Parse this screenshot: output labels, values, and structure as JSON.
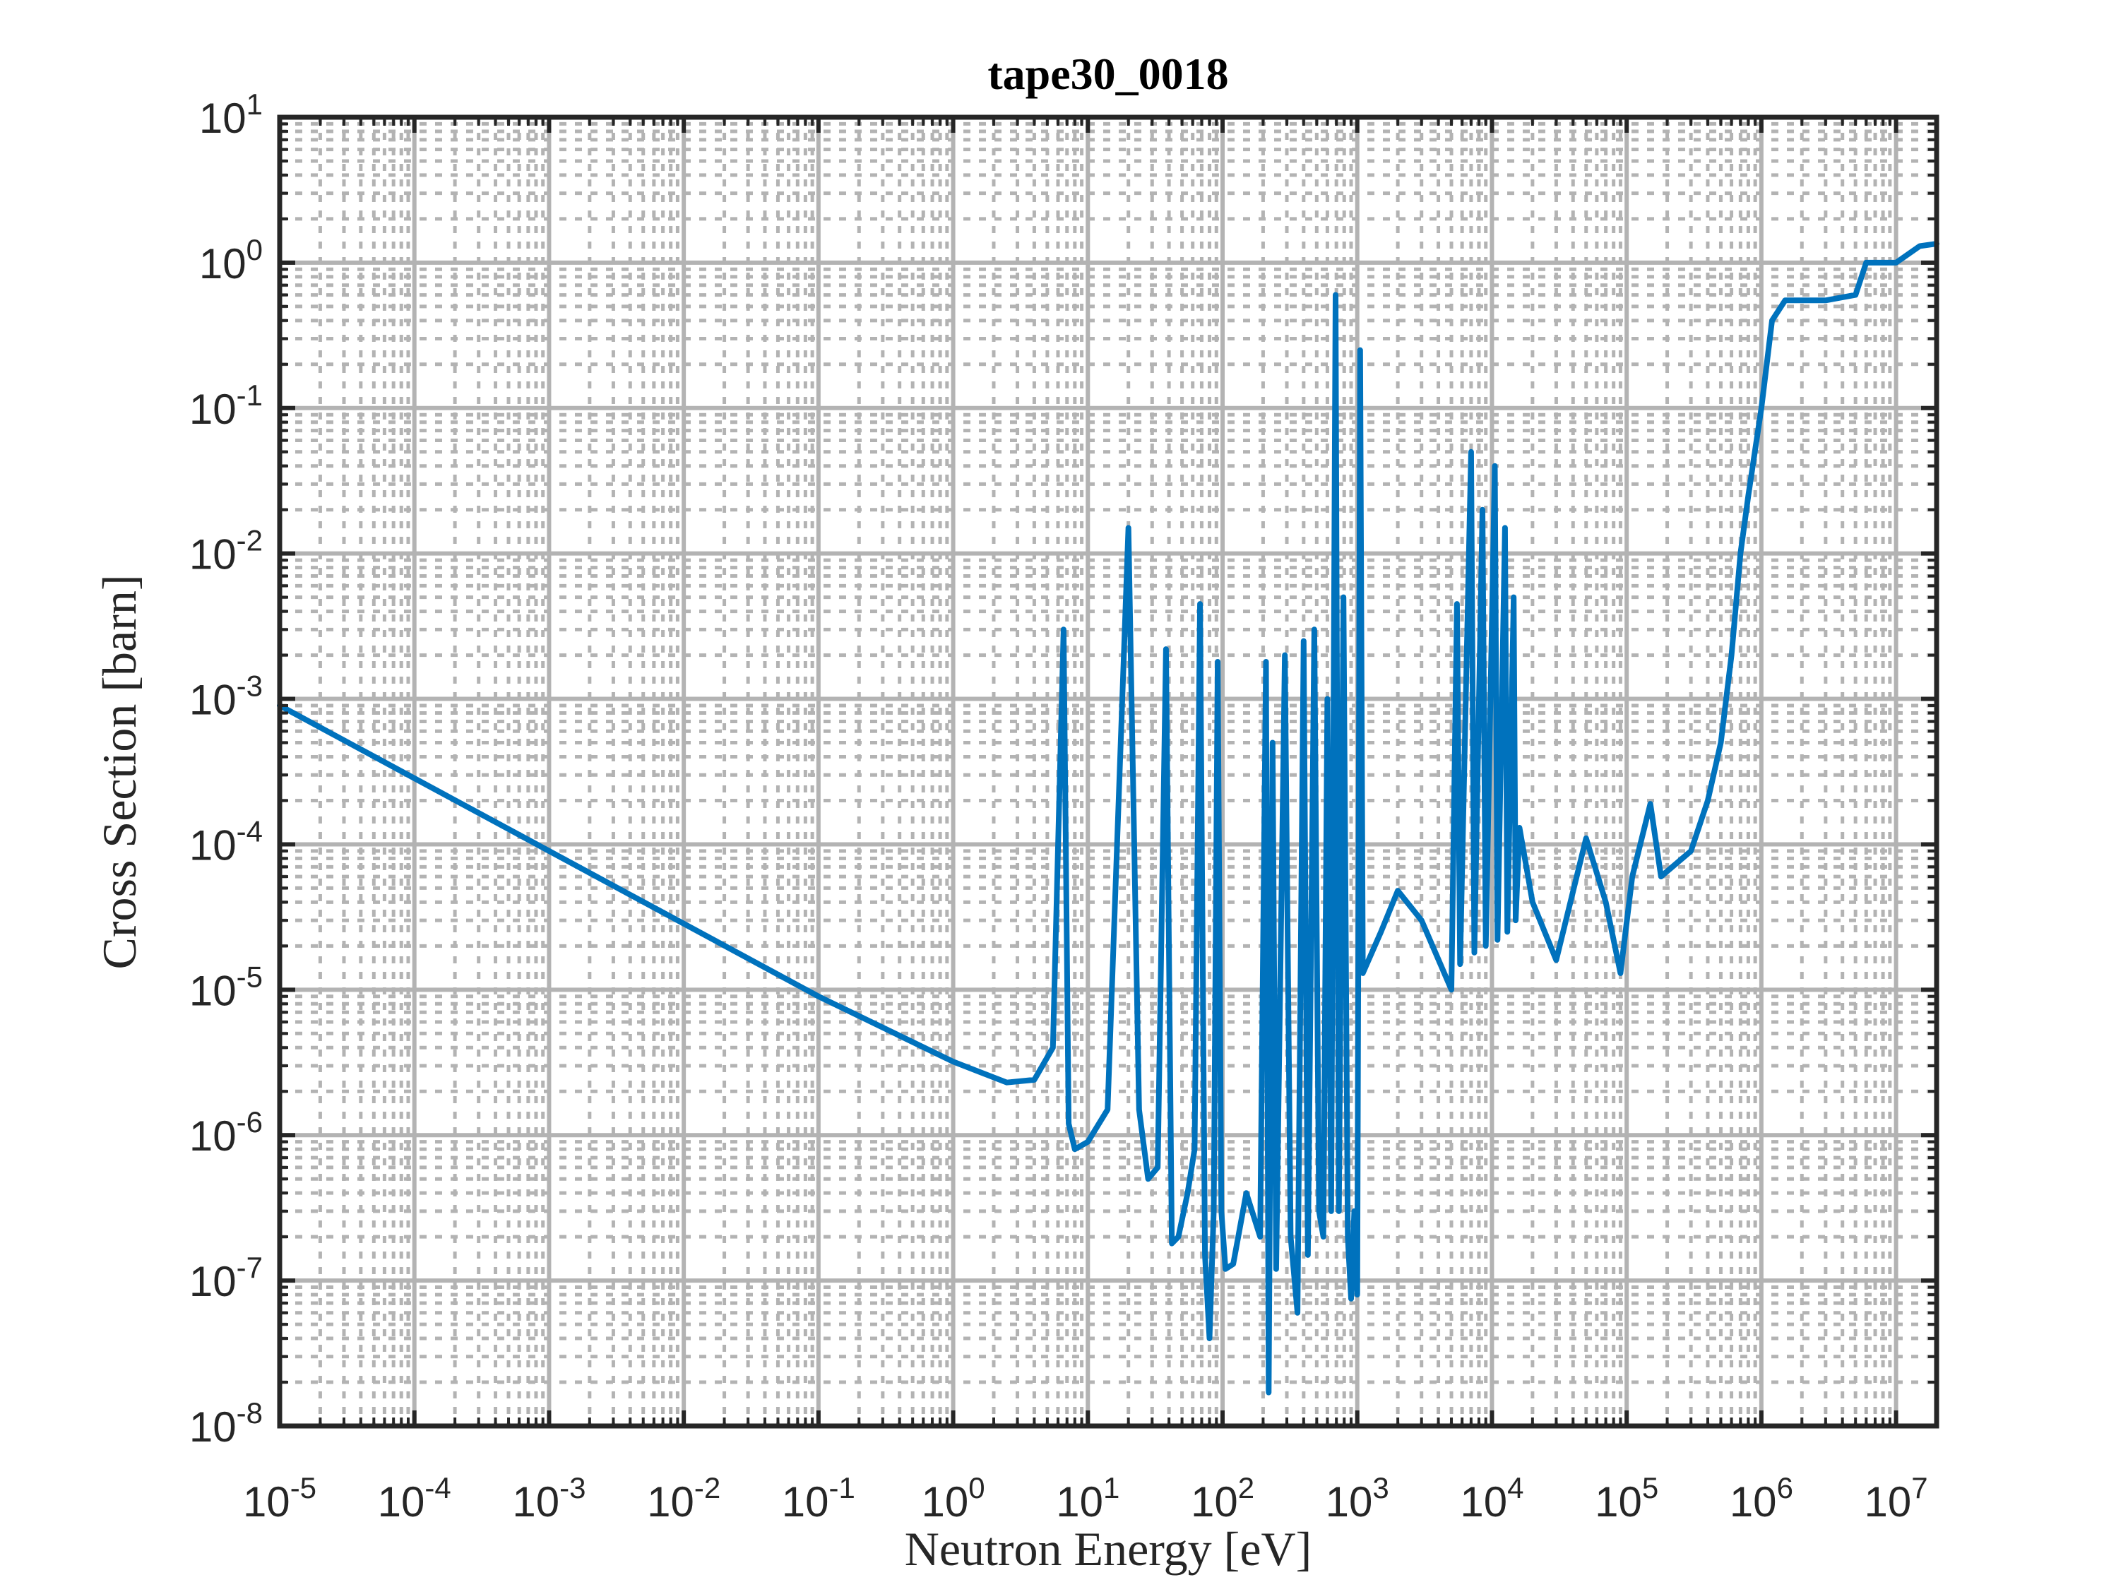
{
  "chart_data": {
    "type": "line",
    "title": "tape30_0018",
    "xlabel": "Neutron Energy [eV]",
    "ylabel": "Cross Section [barn]",
    "xscale": "log",
    "yscale": "log",
    "xlim": [
      1e-05,
      20000000.0
    ],
    "ylim": [
      1e-08,
      10
    ],
    "grid": "major and minor",
    "x_ticks": [
      {
        "base": "10",
        "exp": "-5"
      },
      {
        "base": "10",
        "exp": "-4"
      },
      {
        "base": "10",
        "exp": "-3"
      },
      {
        "base": "10",
        "exp": "-2"
      },
      {
        "base": "10",
        "exp": "-1"
      },
      {
        "base": "10",
        "exp": "0"
      },
      {
        "base": "10",
        "exp": "1"
      },
      {
        "base": "10",
        "exp": "2"
      },
      {
        "base": "10",
        "exp": "3"
      },
      {
        "base": "10",
        "exp": "4"
      },
      {
        "base": "10",
        "exp": "5"
      },
      {
        "base": "10",
        "exp": "6"
      },
      {
        "base": "10",
        "exp": "7"
      }
    ],
    "y_ticks": [
      {
        "base": "10",
        "exp": "-8"
      },
      {
        "base": "10",
        "exp": "-7"
      },
      {
        "base": "10",
        "exp": "-6"
      },
      {
        "base": "10",
        "exp": "-5"
      },
      {
        "base": "10",
        "exp": "-4"
      },
      {
        "base": "10",
        "exp": "-3"
      },
      {
        "base": "10",
        "exp": "-2"
      },
      {
        "base": "10",
        "exp": "-1"
      },
      {
        "base": "10",
        "exp": "0"
      },
      {
        "base": "10",
        "exp": "1"
      }
    ],
    "colors": {
      "line": "#0072BD",
      "axes": "#262626",
      "grid": "#b3b3b3"
    },
    "series": [
      {
        "values": [
          [
            1e-05,
            0.0009
          ],
          [
            0.1,
            9e-06
          ],
          [
            1.0,
            3.2e-06
          ],
          [
            2.5,
            2.3e-06
          ],
          [
            4.0,
            2.4e-06
          ],
          [
            5.5,
            4e-06
          ],
          [
            6.6,
            0.003
          ],
          [
            7.2,
            1.2e-06
          ],
          [
            8.0,
            8e-07
          ],
          [
            10,
            9e-07
          ],
          [
            14,
            1.5e-06
          ],
          [
            20,
            0.015
          ],
          [
            24,
            1.5e-06
          ],
          [
            28,
            5e-07
          ],
          [
            33,
            6e-07
          ],
          [
            38,
            0.0022
          ],
          [
            42,
            1.8e-07
          ],
          [
            47,
            2e-07
          ],
          [
            55,
            4e-07
          ],
          [
            62,
            8e-07
          ],
          [
            68,
            0.0045
          ],
          [
            74,
            1.5e-07
          ],
          [
            80,
            4e-08
          ],
          [
            86,
            3e-07
          ],
          [
            92,
            0.0018
          ],
          [
            98,
            3e-07
          ],
          [
            105,
            1.2e-07
          ],
          [
            120,
            1.3e-07
          ],
          [
            150,
            4e-07
          ],
          [
            190,
            2e-07
          ],
          [
            210,
            0.0018
          ],
          [
            220,
            1.7e-08
          ],
          [
            235,
            0.0005
          ],
          [
            250,
            1.2e-07
          ],
          [
            290,
            0.002
          ],
          [
            320,
            2e-07
          ],
          [
            360,
            6e-08
          ],
          [
            400,
            0.0025
          ],
          [
            430,
            1.5e-07
          ],
          [
            480,
            0.003
          ],
          [
            520,
            3e-07
          ],
          [
            560,
            2e-07
          ],
          [
            600,
            0.001
          ],
          [
            640,
            3e-07
          ],
          [
            690,
            0.6
          ],
          [
            730,
            3e-07
          ],
          [
            790,
            0.005
          ],
          [
            850,
            2e-07
          ],
          [
            900,
            7.5e-08
          ],
          [
            950,
            3e-07
          ],
          [
            1000,
            8e-08
          ],
          [
            1050,
            0.25
          ],
          [
            1100,
            1.3e-05
          ],
          [
            1500,
            2.5e-05
          ],
          [
            2000,
            4.8e-05
          ],
          [
            3000,
            3e-05
          ],
          [
            5000,
            1e-05
          ],
          [
            5500,
            0.0045
          ],
          [
            5800,
            1.5e-05
          ],
          [
            7000,
            0.05
          ],
          [
            7400,
            1.8e-05
          ],
          [
            8500,
            0.02
          ],
          [
            9000,
            2e-05
          ],
          [
            10500,
            0.04
          ],
          [
            11000,
            2.2e-05
          ],
          [
            12500,
            0.015
          ],
          [
            13000,
            2.5e-05
          ],
          [
            14500,
            0.005
          ],
          [
            15000,
            3e-05
          ],
          [
            16000,
            0.00013
          ],
          [
            20000,
            4e-05
          ],
          [
            30000,
            1.6e-05
          ],
          [
            50000,
            0.00011
          ],
          [
            70000,
            4e-05
          ],
          [
            90000,
            1.3e-05
          ],
          [
            110000.0,
            6e-05
          ],
          [
            150000.0,
            0.00019
          ],
          [
            180000.0,
            6e-05
          ],
          [
            300000.0,
            9e-05
          ],
          [
            400000.0,
            0.0002
          ],
          [
            500000.0,
            0.0005
          ],
          [
            600000.0,
            0.002
          ],
          [
            700000.0,
            0.01
          ],
          [
            800000.0,
            0.025
          ],
          [
            1000000.0,
            0.1
          ],
          [
            1200000.0,
            0.4
          ],
          [
            1500000.0,
            0.55
          ],
          [
            3000000.0,
            0.55
          ],
          [
            5000000.0,
            0.6
          ],
          [
            6000000.0,
            1.0
          ],
          [
            10000000.0,
            1.0
          ],
          [
            15000000.0,
            1.3
          ],
          [
            20000000.0,
            1.35
          ]
        ]
      }
    ]
  }
}
